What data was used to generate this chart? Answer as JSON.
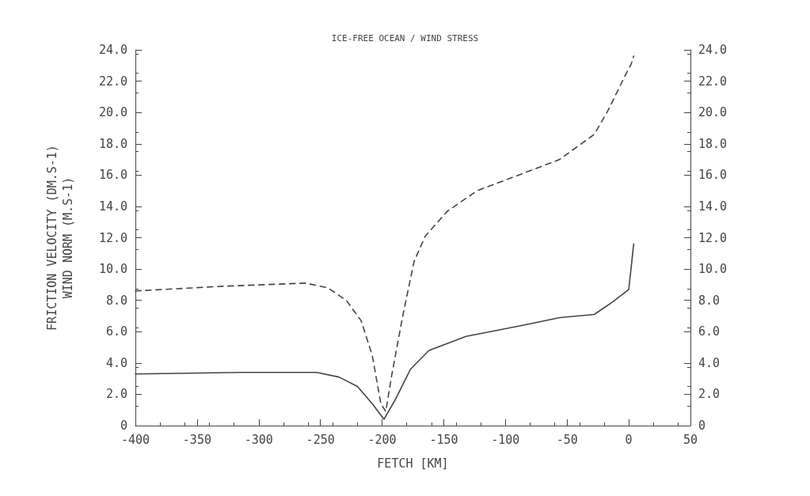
{
  "chart_data": {
    "type": "line",
    "title": "ICE-FREE OCEAN / WIND STRESS",
    "xlabel": "FETCH [KM]",
    "ylabel": "FRICTION VELOCITY (DM.S-1)\nWIND NORM (M.S-1)",
    "xlim": [
      -400,
      50
    ],
    "xticks": [
      -400,
      -350,
      -300,
      -250,
      -200,
      -150,
      -100,
      -50,
      0,
      50
    ],
    "ylim": [
      0,
      24
    ],
    "yticks": [
      0,
      {
        "value": 2,
        "label": "2.0"
      },
      {
        "value": 4,
        "label": "4.0"
      },
      {
        "value": 6,
        "label": "6.0"
      },
      {
        "value": 8,
        "label": "8.0"
      },
      {
        "value": 10,
        "label": "10.0"
      },
      {
        "value": 12,
        "label": "12.0"
      },
      {
        "value": 14,
        "label": "14.0"
      },
      {
        "value": 16,
        "label": "16.0"
      },
      {
        "value": 18,
        "label": "18.0"
      },
      {
        "value": 20,
        "label": "20.0"
      },
      {
        "value": 22,
        "label": "22.0"
      },
      {
        "value": 24,
        "label": "24.0"
      }
    ],
    "y2lim": [
      0,
      24
    ],
    "y2ticks": [
      0,
      {
        "value": 2,
        "label": "2.0"
      },
      {
        "value": 4,
        "label": "4.0"
      },
      {
        "value": 6,
        "label": "6.0"
      },
      {
        "value": 8,
        "label": "8.0"
      },
      {
        "value": 10,
        "label": "10.0"
      },
      {
        "value": 12,
        "label": "12.0"
      },
      {
        "value": 14,
        "label": "14.0"
      },
      {
        "value": 16,
        "label": "16.0"
      },
      {
        "value": 18,
        "label": "18.0"
      },
      {
        "value": 20,
        "label": "20.0"
      },
      {
        "value": 22,
        "label": "22.0"
      },
      {
        "value": 24,
        "label": "24.0"
      }
    ],
    "grid": false,
    "marker": "none",
    "series": [
      {
        "color": "#444444",
        "line_style": "solid",
        "x": [
          -400,
          -314,
          -253,
          -235,
          -220,
          -208,
          -198.5,
          -189,
          -177,
          -162,
          -132,
          -86,
          -56,
          -28,
          -13,
          0,
          4
        ],
        "values": [
          3.3,
          3.4,
          3.4,
          3.1,
          2.5,
          1.4,
          0.4,
          1.7,
          3.6,
          4.8,
          5.7,
          6.4,
          6.9,
          7.1,
          7.9,
          8.7,
          11.6
        ]
      },
      {
        "color": "#444444",
        "line_style": "dashed",
        "x": [
          -400,
          -329,
          -262,
          -244,
          -229,
          -217,
          -208,
          -201,
          -197,
          -192,
          -183,
          -174,
          -165,
          -147,
          -123,
          -86,
          -56,
          -28,
          -17,
          -2,
          2,
          4
        ],
        "values": [
          8.6,
          8.9,
          9.1,
          8.8,
          8.0,
          6.7,
          4.5,
          1.4,
          0.9,
          3.3,
          7.1,
          10.5,
          12.1,
          13.7,
          15.0,
          16.1,
          17.0,
          18.6,
          20.1,
          22.5,
          23.1,
          23.6
        ]
      }
    ]
  }
}
